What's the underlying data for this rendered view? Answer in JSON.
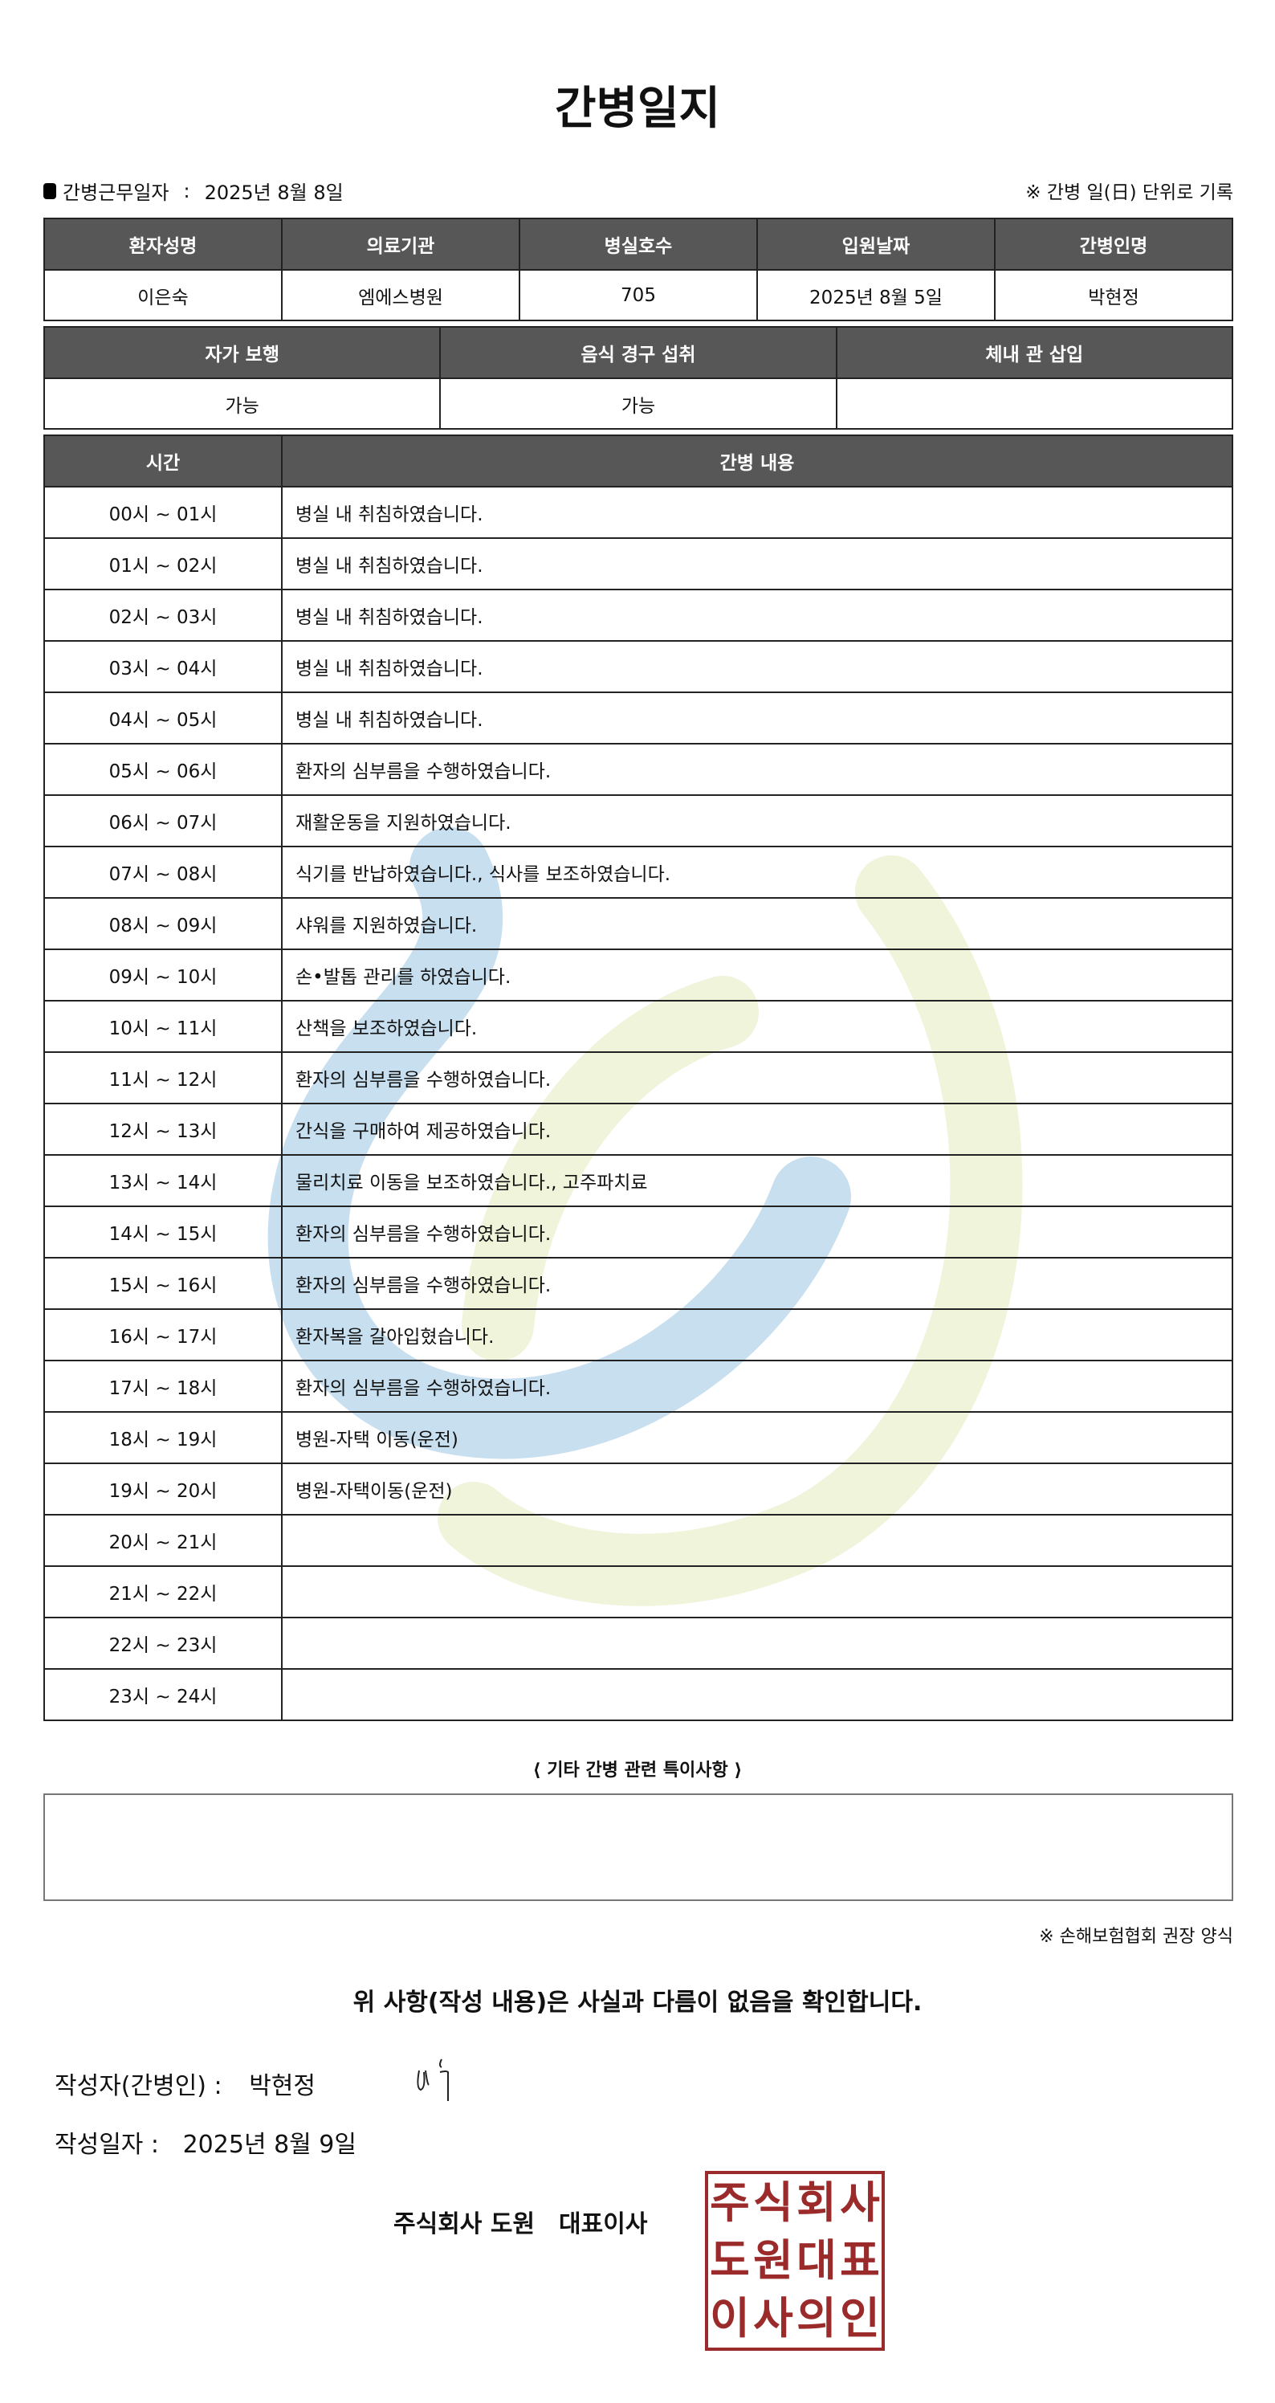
{
  "title": "간병일지",
  "work_date_label": "간병근무일자",
  "work_date_sep": ":",
  "work_date": "2025년 8월 8일",
  "unit_note": "※ 간병 일(日) 단위로 기록",
  "info": {
    "headers": [
      "환자성명",
      "의료기관",
      "병실호수",
      "입원날짜",
      "간병인명"
    ],
    "values": [
      "이은숙",
      "엠에스병원",
      "705",
      "2025년 8월 5일",
      "박현정"
    ]
  },
  "status": {
    "headers": [
      "자가 보행",
      "음식 경구 섭취",
      "체내 관 삽입"
    ],
    "values": [
      "가능",
      "가능",
      ""
    ]
  },
  "log": {
    "headers": [
      "시간",
      "간병 내용"
    ],
    "rows": [
      {
        "time": "00시 ~ 01시",
        "content": "병실 내 취침하였습니다."
      },
      {
        "time": "01시 ~ 02시",
        "content": "병실 내 취침하였습니다."
      },
      {
        "time": "02시 ~ 03시",
        "content": "병실 내 취침하였습니다."
      },
      {
        "time": "03시 ~ 04시",
        "content": "병실 내 취침하였습니다."
      },
      {
        "time": "04시 ~ 05시",
        "content": "병실 내 취침하였습니다."
      },
      {
        "time": "05시 ~ 06시",
        "content": "환자의 심부름을 수행하였습니다."
      },
      {
        "time": "06시 ~ 07시",
        "content": "재활운동을 지원하였습니다."
      },
      {
        "time": "07시 ~ 08시",
        "content": "식기를 반납하였습니다., 식사를 보조하였습니다."
      },
      {
        "time": "08시 ~ 09시",
        "content": "샤워를 지원하였습니다."
      },
      {
        "time": "09시 ~ 10시",
        "content": "손•발톱 관리를 하였습니다."
      },
      {
        "time": "10시 ~ 11시",
        "content": "산책을 보조하였습니다."
      },
      {
        "time": "11시 ~ 12시",
        "content": "환자의 심부름을 수행하였습니다."
      },
      {
        "time": "12시 ~ 13시",
        "content": "간식을 구매하여 제공하였습니다."
      },
      {
        "time": "13시 ~ 14시",
        "content": "물리치료 이동을 보조하였습니다., 고주파치료"
      },
      {
        "time": "14시 ~ 15시",
        "content": "환자의 심부름을 수행하였습니다."
      },
      {
        "time": "15시 ~ 16시",
        "content": "환자의 심부름을 수행하였습니다."
      },
      {
        "time": "16시 ~ 17시",
        "content": "환자복을 갈아입혔습니다."
      },
      {
        "time": "17시 ~ 18시",
        "content": "환자의 심부름을 수행하였습니다."
      },
      {
        "time": "18시 ~ 19시",
        "content": "병원-자택 이동(운전)"
      },
      {
        "time": "19시 ~ 20시",
        "content": "병원-자택이동(운전)"
      },
      {
        "time": "20시 ~ 21시",
        "content": ""
      },
      {
        "time": "21시 ~ 22시",
        "content": ""
      },
      {
        "time": "22시 ~ 23시",
        "content": ""
      },
      {
        "time": "23시 ~ 24시",
        "content": ""
      }
    ]
  },
  "remarks_label": "⟨ 기타 간병 관련 특이사항 ⟩",
  "remarks": "",
  "insurance_note": "※ 손해보험협회 권장 양식",
  "confirm_text": "위 사항(작성 내용)은 사실과 다름이 없음을 확인합니다.",
  "writer_label": "작성자(간병인) :",
  "writer_name": "박현정",
  "write_date_label": "작성일자 :",
  "write_date": "2025년 8월 9일",
  "company": "주식회사 도원　대표이사",
  "stamp_text": "주식회사도원대표이사의인",
  "colors": {
    "header_bg": "#575757",
    "stamp": "#9b2a2a",
    "watermark_blue": "#c8dff0",
    "watermark_green": "#eef3d6"
  }
}
